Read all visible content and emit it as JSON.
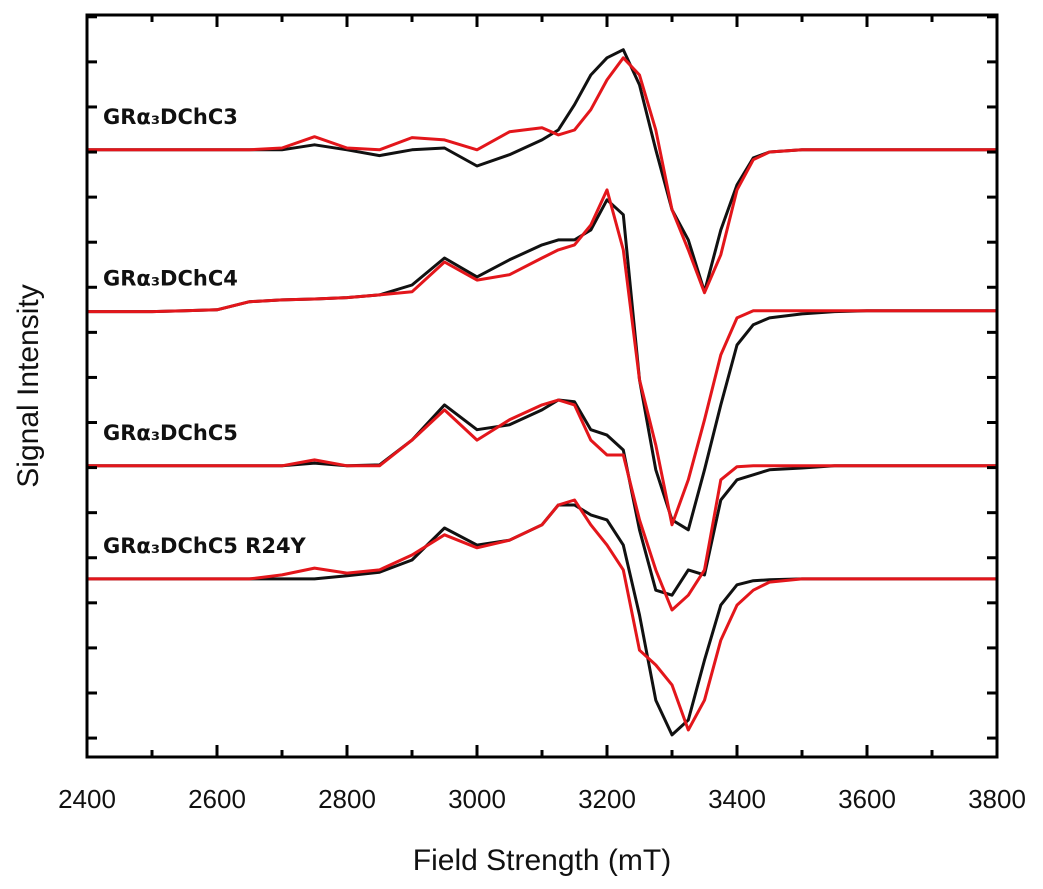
{
  "chart_data": {
    "type": "line",
    "xlabel": "Field Strength (mT)",
    "ylabel": "Signal Intensity",
    "xlim": [
      2400,
      3800
    ],
    "xticks": [
      2400,
      2600,
      2800,
      3000,
      3200,
      3400,
      3600,
      3800
    ],
    "xminorticks": [
      2500,
      2700,
      2900,
      3100,
      3300,
      3500,
      3700
    ],
    "ylim": [
      -0.42,
      16.04
    ],
    "yticks": [
      0,
      1,
      2,
      3,
      4,
      5,
      6,
      7,
      8,
      9,
      10,
      11,
      12,
      13,
      14,
      15,
      16
    ],
    "ytick_labels": false,
    "x": [
      2400,
      2450,
      2500,
      2550,
      2600,
      2650,
      2700,
      2750,
      2800,
      2850,
      2900,
      2950,
      3000,
      3050,
      3100,
      3125,
      3150,
      3175,
      3200,
      3225,
      3250,
      3275,
      3300,
      3325,
      3350,
      3375,
      3400,
      3425,
      3450,
      3500,
      3550,
      3600,
      3650,
      3700,
      3750,
      3800
    ],
    "series": [
      {
        "name": "GRα₃DChC3",
        "color": "#111111",
        "values": [
          13.05,
          13.05,
          13.05,
          13.05,
          13.05,
          13.05,
          13.05,
          13.16,
          13.05,
          12.92,
          13.05,
          13.09,
          12.69,
          12.94,
          13.27,
          13.49,
          14.05,
          14.71,
          15.09,
          15.27,
          14.49,
          13.05,
          11.72,
          11.05,
          9.9,
          11.27,
          12.27,
          12.87,
          13.0,
          13.05,
          13.05,
          13.05,
          13.05,
          13.05,
          13.05,
          13.05
        ]
      },
      {
        "color": "#e3161b",
        "values": [
          13.05,
          13.05,
          13.05,
          13.05,
          13.05,
          13.05,
          13.09,
          13.34,
          13.09,
          13.05,
          13.32,
          13.27,
          13.05,
          13.45,
          13.54,
          13.38,
          13.49,
          13.94,
          14.6,
          15.09,
          14.71,
          13.49,
          11.72,
          10.83,
          9.88,
          10.72,
          12.16,
          12.83,
          13.0,
          13.05,
          13.05,
          13.05,
          13.05,
          13.05,
          13.05,
          13.05
        ]
      },
      {
        "name": "GRα₃DChC4",
        "color": "#111111",
        "values": [
          9.46,
          9.46,
          9.46,
          9.48,
          9.5,
          9.68,
          9.72,
          9.74,
          9.77,
          9.83,
          10.05,
          10.65,
          10.23,
          10.61,
          10.94,
          11.05,
          11.05,
          11.27,
          11.94,
          11.61,
          7.95,
          5.95,
          4.84,
          4.62,
          5.95,
          7.39,
          8.72,
          9.17,
          9.32,
          9.41,
          9.46,
          9.48,
          9.48,
          9.48,
          9.48,
          9.48
        ]
      },
      {
        "color": "#e3161b",
        "values": [
          9.46,
          9.46,
          9.46,
          9.48,
          9.5,
          9.68,
          9.72,
          9.74,
          9.77,
          9.83,
          9.9,
          10.56,
          10.16,
          10.28,
          10.65,
          10.83,
          10.94,
          11.38,
          12.16,
          10.83,
          7.95,
          6.5,
          4.73,
          5.73,
          7.06,
          8.5,
          9.32,
          9.48,
          9.48,
          9.48,
          9.48,
          9.48,
          9.48,
          9.48,
          9.48,
          9.48
        ]
      },
      {
        "name": "GRα₃DChC5",
        "color": "#111111",
        "values": [
          6.04,
          6.04,
          6.04,
          6.04,
          6.04,
          6.04,
          6.04,
          6.1,
          6.04,
          6.06,
          6.61,
          7.39,
          6.84,
          6.95,
          7.28,
          7.5,
          7.46,
          6.84,
          6.72,
          6.39,
          4.62,
          3.28,
          3.17,
          3.73,
          3.62,
          5.28,
          5.73,
          5.84,
          5.95,
          5.99,
          6.04,
          6.04,
          6.04,
          6.04,
          6.04,
          6.04
        ]
      },
      {
        "color": "#e3161b",
        "values": [
          6.04,
          6.04,
          6.04,
          6.04,
          6.04,
          6.04,
          6.04,
          6.17,
          6.04,
          6.04,
          6.61,
          7.28,
          6.61,
          7.06,
          7.39,
          7.5,
          7.39,
          6.61,
          6.28,
          6.28,
          4.84,
          3.73,
          2.84,
          3.17,
          3.73,
          5.73,
          6.02,
          6.04,
          6.04,
          6.04,
          6.04,
          6.04,
          6.04,
          6.04,
          6.04,
          6.04
        ]
      },
      {
        "name": "GRα₃DChC5 R24Y",
        "color": "#111111",
        "values": [
          3.53,
          3.53,
          3.53,
          3.53,
          3.53,
          3.53,
          3.53,
          3.53,
          3.6,
          3.68,
          3.95,
          4.66,
          4.28,
          4.39,
          4.73,
          5.17,
          5.17,
          4.95,
          4.84,
          4.28,
          2.73,
          0.84,
          0.07,
          0.4,
          1.73,
          2.95,
          3.4,
          3.49,
          3.51,
          3.53,
          3.53,
          3.53,
          3.53,
          3.53,
          3.53,
          3.53
        ]
      },
      {
        "color": "#e3161b",
        "values": [
          3.53,
          3.53,
          3.53,
          3.53,
          3.53,
          3.53,
          3.62,
          3.77,
          3.66,
          3.73,
          4.06,
          4.51,
          4.22,
          4.39,
          4.73,
          5.17,
          5.28,
          4.73,
          4.28,
          3.73,
          1.95,
          1.62,
          1.18,
          0.18,
          0.84,
          2.17,
          2.95,
          3.28,
          3.46,
          3.53,
          3.53,
          3.53,
          3.53,
          3.53,
          3.53,
          3.53
        ]
      }
    ]
  }
}
